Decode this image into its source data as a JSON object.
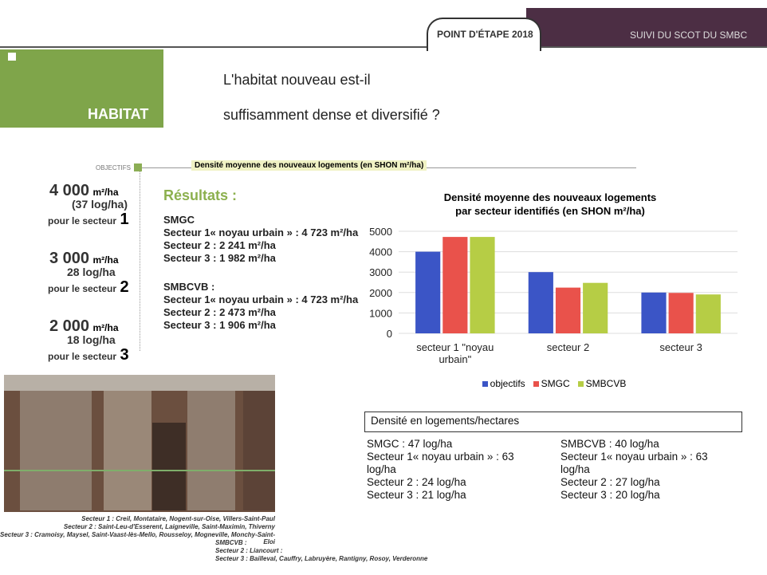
{
  "header": {
    "tab": "POINT D'ÉTAPE 2018",
    "banner": "SUIVI DU SCOT DU SMBC"
  },
  "section": "HABITAT",
  "title": [
    "L'habitat nouveau est-il",
    "suffisamment dense et diversifié ?"
  ],
  "objectives_label": "OBJECTIFS",
  "indicator": "Densité moyenne des nouveaux logements (en SHON m²/ha)",
  "objectives": [
    {
      "value": "4 000",
      "unit": "m²/ha",
      "log": "(37 log/ha)",
      "sector": "pour le secteur",
      "number": "1"
    },
    {
      "value": "3 000",
      "unit": "m²/ha",
      "log": "28 log/ha",
      "sector": "pour le secteur",
      "number": "2"
    },
    {
      "value": "2 000",
      "unit": "m²/ha",
      "log": "18 log/ha",
      "sector": "pour le secteur",
      "number": "3"
    }
  ],
  "results": {
    "title": "Résultats :",
    "groups": [
      {
        "name": "SMGC",
        "lines": [
          "Secteur 1« noyau urbain » : 4 723 m²/ha",
          "Secteur 2 : 2 241 m²/ha",
          "Secteur 3 : 1 982 m²/ha"
        ]
      },
      {
        "name": "SMBCVB :",
        "lines": [
          "Secteur 1« noyau urbain » : 4 723 m²/ha",
          "Secteur 2 : 2 473 m²/ha",
          "Secteur 3 : 1 906 m²/ha"
        ]
      }
    ]
  },
  "chart_data": {
    "type": "bar",
    "title": [
      "Densité moyenne des nouveaux logements",
      "par secteur identifiés (en SHON m²/ha)"
    ],
    "categories": [
      "secteur 1 \"noyau urbain\"",
      "secteur 2",
      "secteur 3"
    ],
    "series": [
      {
        "name": "objectifs",
        "color": "#3b55c6",
        "values": [
          4000,
          3000,
          2000
        ]
      },
      {
        "name": "SMGC",
        "color": "#e9524b",
        "values": [
          4723,
          2241,
          1982
        ]
      },
      {
        "name": "SMBCVB",
        "color": "#b6cd45",
        "values": [
          4723,
          2473,
          1906
        ]
      }
    ],
    "ylim": [
      0,
      5000
    ],
    "yticks": [
      0,
      1000,
      2000,
      3000,
      4000,
      5000
    ],
    "grid": true
  },
  "density_box": {
    "title": "Densité en logements/hectares",
    "columns": [
      [
        "SMGC : 47 log/ha",
        "Secteur 1« noyau urbain » : 63 log/ha",
        "Secteur 2 : 24 log/ha",
        "Secteur 3 : 21 log/ha"
      ],
      [
        "SMBCVB : 40 log/ha",
        "Secteur 1« noyau urbain » : 63 log/ha",
        "Secteur 2 : 27 log/ha",
        "Secteur 3 : 20 log/ha"
      ]
    ]
  },
  "caption": [
    "Secteur 1 : Creil, Montataire, Nogent-sur-Oise, Villers-Saint-Paul",
    "Secteur 2 : Saint-Leu-d'Esserent, Laigneville, Saint-Maximin, Thiverny",
    "Secteur 3 : Cramoisy, Maysel, Saint-Vaast-lès-Mello, Rousseloy, Mogneville, Monchy-Saint-Eloi",
    "SMBCVB :",
    "Secteur 2 : Liancourt :",
    "Secteur 3 : Bailleval, Cauffry, Labruyère, Rantigny, Rosoy, Verderonne"
  ]
}
